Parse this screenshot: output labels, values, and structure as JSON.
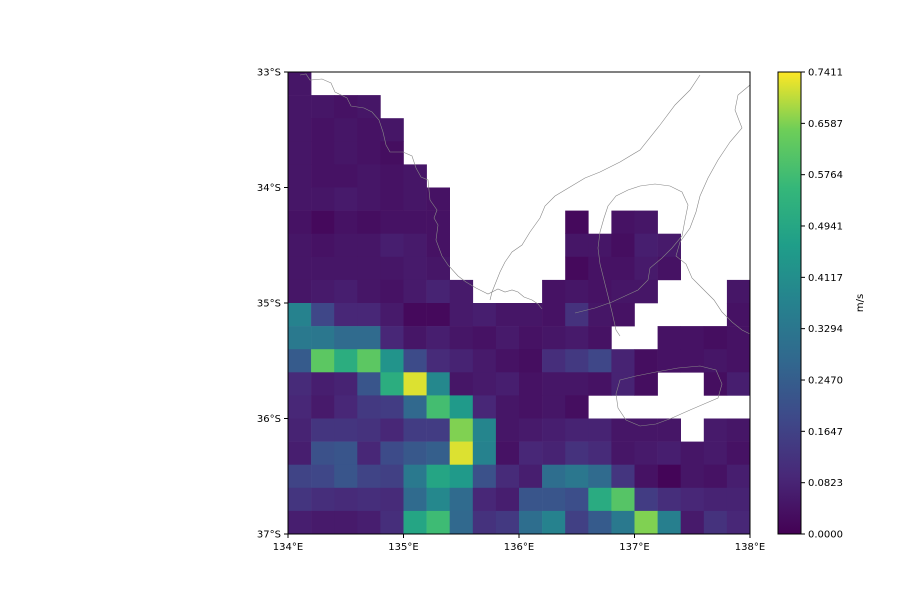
{
  "chart_data": {
    "type": "heatmap",
    "title": "",
    "x_ticks": [
      {
        "value": 134,
        "label": "134°E"
      },
      {
        "value": 135,
        "label": "135°E"
      },
      {
        "value": 136,
        "label": "136°E"
      },
      {
        "value": 137,
        "label": "137°E"
      },
      {
        "value": 138,
        "label": "138°E"
      }
    ],
    "y_ticks": [
      {
        "value": -33,
        "label": "33°S"
      },
      {
        "value": -34,
        "label": "34°S"
      },
      {
        "value": -35,
        "label": "35°S"
      },
      {
        "value": -36,
        "label": "36°S"
      },
      {
        "value": -37,
        "label": "37°S"
      }
    ],
    "xlim": [
      134,
      138
    ],
    "ylim": [
      -37,
      -33
    ],
    "grid_lon0": 134.0,
    "grid_lat0": -33.0,
    "grid_step": 0.2,
    "grid_note": "values in m/s, rows from north (-33) southward in 0.2° steps, columns from 134°E eastward; null = land / no data",
    "values": [
      [
        0.05,
        null,
        null,
        null,
        null,
        null,
        null,
        null,
        null,
        null,
        null,
        null,
        null,
        null,
        null,
        null,
        null,
        null,
        null,
        null
      ],
      [
        0.05,
        0.05,
        0.04,
        0.05,
        null,
        null,
        null,
        null,
        null,
        null,
        null,
        null,
        null,
        null,
        null,
        null,
        null,
        null,
        null,
        null
      ],
      [
        0.05,
        0.04,
        0.05,
        0.04,
        0.05,
        null,
        null,
        null,
        null,
        null,
        null,
        null,
        null,
        null,
        null,
        null,
        null,
        null,
        null,
        null
      ],
      [
        0.05,
        0.04,
        0.05,
        0.04,
        0.03,
        null,
        null,
        null,
        null,
        null,
        null,
        null,
        null,
        null,
        null,
        null,
        null,
        null,
        null,
        null
      ],
      [
        0.05,
        0.04,
        0.04,
        0.05,
        0.04,
        0.05,
        null,
        null,
        null,
        null,
        null,
        null,
        null,
        null,
        null,
        null,
        null,
        null,
        null,
        null
      ],
      [
        0.05,
        0.05,
        0.06,
        0.05,
        0.04,
        0.05,
        0.04,
        null,
        null,
        null,
        null,
        null,
        null,
        null,
        null,
        null,
        null,
        null,
        null,
        null
      ],
      [
        0.04,
        0.02,
        0.04,
        0.03,
        0.04,
        0.04,
        0.04,
        null,
        null,
        null,
        null,
        null,
        0.02,
        null,
        0.04,
        0.05,
        null,
        null,
        null,
        null
      ],
      [
        0.05,
        0.04,
        0.05,
        0.05,
        0.07,
        0.06,
        0.04,
        null,
        null,
        null,
        null,
        null,
        0.05,
        0.05,
        0.03,
        0.07,
        0.06,
        null,
        null,
        null
      ],
      [
        0.05,
        0.05,
        0.05,
        0.05,
        0.05,
        0.06,
        0.05,
        null,
        null,
        null,
        null,
        null,
        0.02,
        0.04,
        0.04,
        0.06,
        0.04,
        null,
        null,
        null
      ],
      [
        0.05,
        0.06,
        0.07,
        0.05,
        0.04,
        0.06,
        0.08,
        0.06,
        null,
        null,
        null,
        0.04,
        0.05,
        0.04,
        0.05,
        0.05,
        null,
        null,
        null,
        0.05
      ],
      [
        0.37,
        0.18,
        0.09,
        0.09,
        0.06,
        0.02,
        0.02,
        0.06,
        0.07,
        0.05,
        0.05,
        0.04,
        0.12,
        0.05,
        0.04,
        null,
        null,
        null,
        null,
        0.04
      ],
      [
        0.34,
        0.33,
        0.29,
        0.29,
        0.09,
        0.05,
        0.07,
        0.05,
        0.04,
        0.06,
        0.04,
        0.05,
        0.06,
        0.04,
        null,
        null,
        0.04,
        0.04,
        0.03,
        0.04
      ],
      [
        0.24,
        0.62,
        0.52,
        0.62,
        0.43,
        0.19,
        0.1,
        0.08,
        0.06,
        0.04,
        0.03,
        0.11,
        0.14,
        0.18,
        0.08,
        0.03,
        0.04,
        0.04,
        0.05,
        0.04
      ],
      [
        0.1,
        0.07,
        0.08,
        0.22,
        0.52,
        0.72,
        0.39,
        0.05,
        0.06,
        0.07,
        0.04,
        0.05,
        0.05,
        0.04,
        0.08,
        0.03,
        null,
        null,
        0.03,
        0.07
      ],
      [
        0.09,
        0.06,
        0.09,
        0.14,
        0.15,
        0.28,
        0.58,
        0.45,
        0.09,
        0.05,
        0.04,
        0.05,
        0.03,
        null,
        null,
        null,
        null,
        null,
        null,
        null
      ],
      [
        0.08,
        0.13,
        0.13,
        0.12,
        0.09,
        0.15,
        0.15,
        0.66,
        0.38,
        0.05,
        0.06,
        0.07,
        0.08,
        0.08,
        0.05,
        0.05,
        0.05,
        null,
        0.06,
        0.05
      ],
      [
        0.07,
        0.21,
        0.22,
        0.09,
        0.19,
        0.23,
        0.25,
        0.72,
        0.37,
        0.04,
        0.09,
        0.08,
        0.12,
        0.1,
        0.05,
        0.06,
        0.07,
        0.05,
        0.06,
        0.04
      ],
      [
        0.17,
        0.18,
        0.22,
        0.17,
        0.16,
        0.34,
        0.49,
        0.45,
        0.21,
        0.1,
        0.07,
        0.3,
        0.33,
        0.29,
        0.13,
        0.04,
        0.01,
        0.05,
        0.04,
        0.07
      ],
      [
        0.13,
        0.11,
        0.1,
        0.11,
        0.1,
        0.29,
        0.39,
        0.29,
        0.09,
        0.07,
        0.22,
        0.22,
        0.2,
        0.51,
        0.61,
        0.15,
        0.11,
        0.09,
        0.08,
        0.08
      ],
      [
        0.07,
        0.06,
        0.06,
        0.07,
        0.11,
        0.49,
        0.57,
        0.28,
        0.12,
        0.14,
        0.3,
        0.37,
        0.16,
        0.24,
        0.34,
        0.66,
        0.36,
        0.06,
        0.12,
        0.09
      ],
      [
        0.2,
        0.1,
        0.1,
        0.08,
        0.1,
        0.18,
        0.2,
        0.43,
        0.41,
        0.37,
        0.29,
        0.44,
        0.1,
        0.08,
        0.05,
        0.3,
        0.43,
        0.28,
        0.26,
        0.2
      ]
    ],
    "colorbar": {
      "label": "m/s",
      "min": 0.0,
      "max": 0.7411,
      "ticks": [
        "0.0000",
        "0.0823",
        "0.1647",
        "0.2470",
        "0.3294",
        "0.4117",
        "0.4941",
        "0.5764",
        "0.6587",
        "0.7411"
      ],
      "colormap": "viridis"
    },
    "coastline_color": "#888888"
  }
}
